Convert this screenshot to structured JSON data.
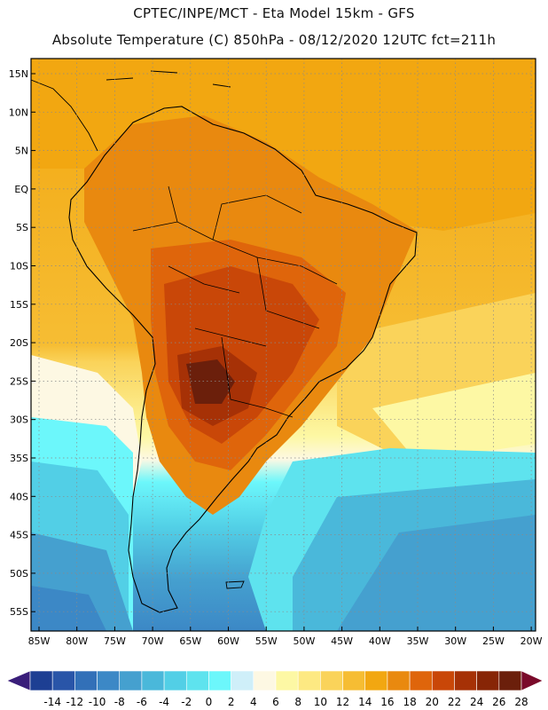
{
  "header": {
    "line1": "CPTEC/INPE/MCT -  Eta Model 15km - GFS",
    "line2": "Absolute Temperature (C) 850hPa - 08/12/2020 12UTC fct=211h"
  },
  "map": {
    "lat_labels": [
      "15N",
      "10N",
      "5N",
      "EQ",
      "5S",
      "10S",
      "15S",
      "20S",
      "25S",
      "30S",
      "35S",
      "40S",
      "45S",
      "50S",
      "55S"
    ],
    "lon_labels": [
      "85W",
      "80W",
      "75W",
      "70W",
      "65W",
      "60W",
      "55W",
      "50W",
      "45W",
      "40W",
      "35W",
      "30W",
      "25W",
      "20W"
    ],
    "grid": "dotted"
  },
  "colorbar": {
    "labels": [
      "-14",
      "-12",
      "-10",
      "-8",
      "-6",
      "-4",
      "-2",
      "0",
      "2",
      "4",
      "6",
      "8",
      "10",
      "12",
      "14",
      "16",
      "18",
      "20",
      "22",
      "24",
      "26",
      "28"
    ],
    "colors": [
      "#1d3f93",
      "#2955a8",
      "#3270b8",
      "#3c88c6",
      "#45a0cf",
      "#4ab8da",
      "#52cfe6",
      "#5ee3ee",
      "#6cf7fb",
      "#cfeff9",
      "#fdf8e3",
      "#fdf8a4",
      "#fde982",
      "#fad35a",
      "#f6bd33",
      "#f2a711",
      "#e9890f",
      "#df650b",
      "#c94708",
      "#a63106",
      "#872506",
      "#6b1f0b"
    ],
    "over_color": "#7a0a2a",
    "under_color": "#3a1e7a"
  }
}
